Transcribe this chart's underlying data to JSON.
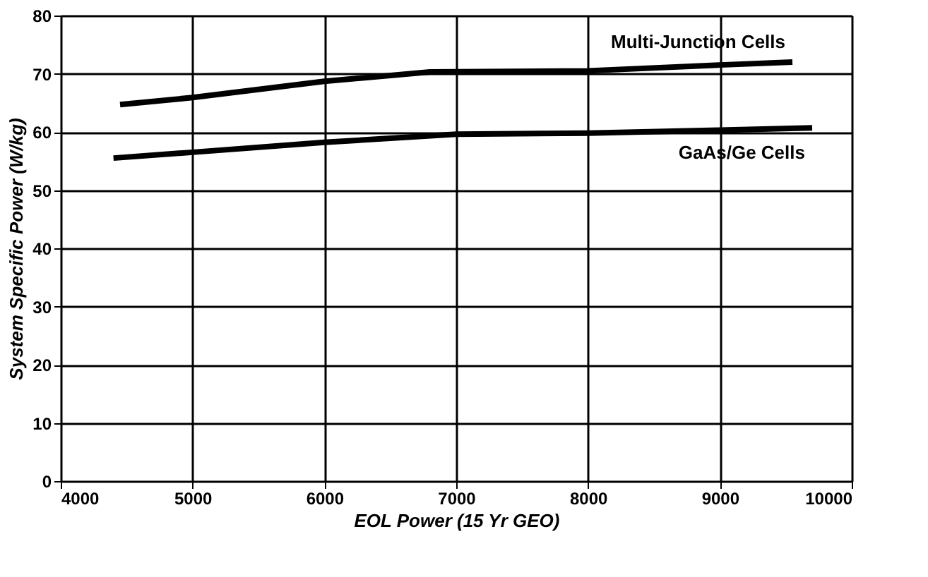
{
  "chart_data": {
    "type": "line",
    "xlabel": "EOL Power (15 Yr GEO)",
    "ylabel": "System Specific Power (W/kg)",
    "series": [
      {
        "name": "Multi-Junction Cells",
        "color": "#000000",
        "x": [
          4450,
          5000,
          6000,
          6800,
          8000,
          9000,
          9550
        ],
        "values": [
          64.7,
          65.9,
          68.7,
          70.3,
          70.5,
          71.5,
          72
        ]
      },
      {
        "name": "GaAs/Ge Cells",
        "color": "#000000",
        "x": [
          4400,
          5000,
          6000,
          7000,
          8000,
          9000,
          9700
        ],
        "values": [
          55.5,
          56.5,
          58.2,
          59.6,
          59.8,
          60.3,
          60.7
        ]
      }
    ],
    "xlim": [
      4000,
      10000
    ],
    "xticks": [
      4000,
      5000,
      6000,
      7000,
      8000,
      9000,
      10000
    ],
    "ylim": [
      0,
      80
    ],
    "yticks": [
      0,
      10,
      20,
      30,
      40,
      50,
      60,
      70,
      80
    ],
    "grid": true,
    "legend": false,
    "marker": "none",
    "line_style": "solid"
  }
}
